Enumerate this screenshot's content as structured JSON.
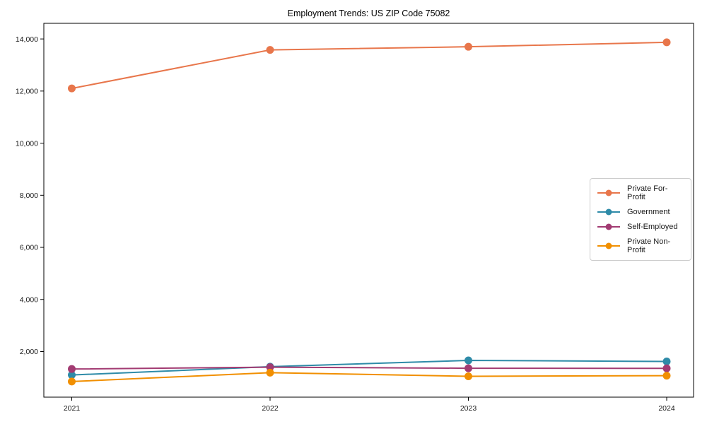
{
  "window": {
    "background": "#ffffff"
  },
  "chart_data": {
    "type": "line",
    "title": "Employment Trends: US ZIP Code 75082",
    "xlabel": "",
    "ylabel": "",
    "x": [
      2021,
      2022,
      2023,
      2024
    ],
    "xtick_labels": [
      "2021",
      "2022",
      "2023",
      "2024"
    ],
    "series": [
      {
        "name": "Private For-Profit",
        "color": "#e8764b",
        "values": [
          12100,
          13580,
          13700,
          13870
        ]
      },
      {
        "name": "Government",
        "color": "#2e8ba8",
        "values": [
          1100,
          1420,
          1660,
          1620
        ]
      },
      {
        "name": "Self-Employed",
        "color": "#a23b72",
        "values": [
          1330,
          1400,
          1360,
          1355
        ]
      },
      {
        "name": "Private Non-Profit",
        "color": "#f18f01",
        "values": [
          850,
          1190,
          1050,
          1075
        ]
      }
    ],
    "yticks": [
      {
        "value": 2000,
        "label": "2,000"
      },
      {
        "value": 4000,
        "label": "4,000"
      },
      {
        "value": 6000,
        "label": "6,000"
      },
      {
        "value": 8000,
        "label": "8,000"
      },
      {
        "value": 10000,
        "label": "10,000"
      },
      {
        "value": 12000,
        "label": "12,000"
      },
      {
        "value": 14000,
        "label": "14,000"
      }
    ],
    "ylim": [
      250,
      14600
    ],
    "grid": false,
    "legend": {
      "position": "center-right",
      "entries": [
        "Private For-Profit",
        "Government",
        "Self-Employed",
        "Private Non-Profit"
      ]
    }
  }
}
